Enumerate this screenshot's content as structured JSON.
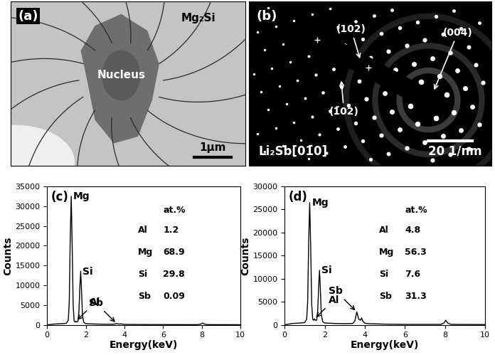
{
  "panels": [
    {
      "label": "(a)",
      "type": "micrograph",
      "texts": [
        "Mg₂Si",
        "Nucleus"
      ],
      "scale_bar": "1μm"
    },
    {
      "label": "(b)",
      "type": "diffraction",
      "zone_axis": "Li₂Sb[01̄0]",
      "spots": [
        "(102)",
        "(004)",
        "(1̄02)"
      ],
      "scale_bar": "20 1/nm"
    }
  ],
  "chart_data": [
    {
      "label": "(c)",
      "type": "line",
      "x_label": "Energy(keV)",
      "y_label": "Counts",
      "color": "#000000",
      "x": [
        0,
        0.2,
        0.4,
        0.6,
        0.8,
        1.0,
        1.1,
        1.15,
        1.2,
        1.25,
        1.3,
        1.35,
        1.4,
        1.45,
        1.49,
        1.53,
        1.6,
        1.65,
        1.7,
        1.74,
        1.78,
        1.83,
        1.9,
        2.0,
        2.5,
        3.0,
        3.4,
        3.5,
        3.6,
        3.7,
        3.78,
        3.84,
        3.9,
        4.0,
        4.2,
        5,
        6,
        7,
        7.8,
        7.95,
        8.04,
        8.13,
        8.3,
        9,
        10
      ],
      "values": [
        0,
        100,
        200,
        250,
        300,
        400,
        1200,
        6000,
        22000,
        32500,
        20000,
        5000,
        1000,
        700,
        900,
        700,
        900,
        3500,
        10000,
        13500,
        9000,
        2500,
        600,
        300,
        200,
        150,
        150,
        200,
        300,
        200,
        200,
        250,
        150,
        120,
        100,
        80,
        60,
        50,
        50,
        200,
        450,
        200,
        50,
        40,
        30
      ],
      "xlim": [
        0,
        10
      ],
      "xticks": [
        0,
        2,
        4,
        6,
        8,
        10
      ],
      "ylim": [
        0,
        35000
      ],
      "yticks": [
        0,
        5000,
        10000,
        15000,
        20000,
        25000,
        30000,
        35000
      ],
      "peaks": [
        {
          "label": "Mg",
          "x": 1.25
        },
        {
          "label": "Si",
          "x": 1.74
        },
        {
          "label": "Al",
          "x": 1.49
        },
        {
          "label": "Sb",
          "x": 3.6
        }
      ],
      "table": {
        "header": "at.%",
        "rows": [
          [
            "Al",
            1.2
          ],
          [
            "Mg",
            68.9
          ],
          [
            "Si",
            29.8
          ],
          [
            "Sb",
            0.09
          ]
        ]
      }
    },
    {
      "label": "(d)",
      "type": "line",
      "x_label": "Energy(keV)",
      "y_label": "Counts",
      "color": "#000000",
      "x": [
        0,
        0.2,
        0.4,
        0.6,
        0.8,
        1.0,
        1.1,
        1.15,
        1.2,
        1.25,
        1.3,
        1.35,
        1.4,
        1.45,
        1.49,
        1.53,
        1.6,
        1.65,
        1.7,
        1.74,
        1.78,
        1.83,
        1.9,
        2.0,
        2.5,
        3.0,
        3.4,
        3.5,
        3.6,
        3.7,
        3.78,
        3.84,
        3.9,
        4.0,
        4.2,
        5,
        6,
        7,
        7.8,
        7.95,
        8.04,
        8.13,
        8.3,
        9,
        10
      ],
      "values": [
        0,
        150,
        300,
        350,
        400,
        500,
        1200,
        5000,
        18000,
        26500,
        17000,
        4500,
        1200,
        1000,
        1300,
        1000,
        1000,
        3000,
        8500,
        11800,
        8000,
        2200,
        700,
        400,
        300,
        250,
        300,
        800,
        2800,
        1200,
        1000,
        1500,
        800,
        350,
        250,
        150,
        100,
        100,
        100,
        400,
        1000,
        400,
        100,
        80,
        60
      ],
      "xlim": [
        0,
        10
      ],
      "xticks": [
        0,
        2,
        4,
        6,
        8,
        10
      ],
      "ylim": [
        0,
        30000
      ],
      "yticks": [
        0,
        5000,
        10000,
        15000,
        20000,
        25000,
        30000
      ],
      "peaks": [
        {
          "label": "Mg",
          "x": 1.25
        },
        {
          "label": "Si",
          "x": 1.74
        },
        {
          "label": "Al",
          "x": 1.49
        },
        {
          "label": "Sb",
          "x": 3.6
        }
      ],
      "table": {
        "header": "at.%",
        "rows": [
          [
            "Al",
            4.8
          ],
          [
            "Mg",
            56.3
          ],
          [
            "Si",
            7.6
          ],
          [
            "Sb",
            31.3
          ]
        ]
      }
    }
  ]
}
